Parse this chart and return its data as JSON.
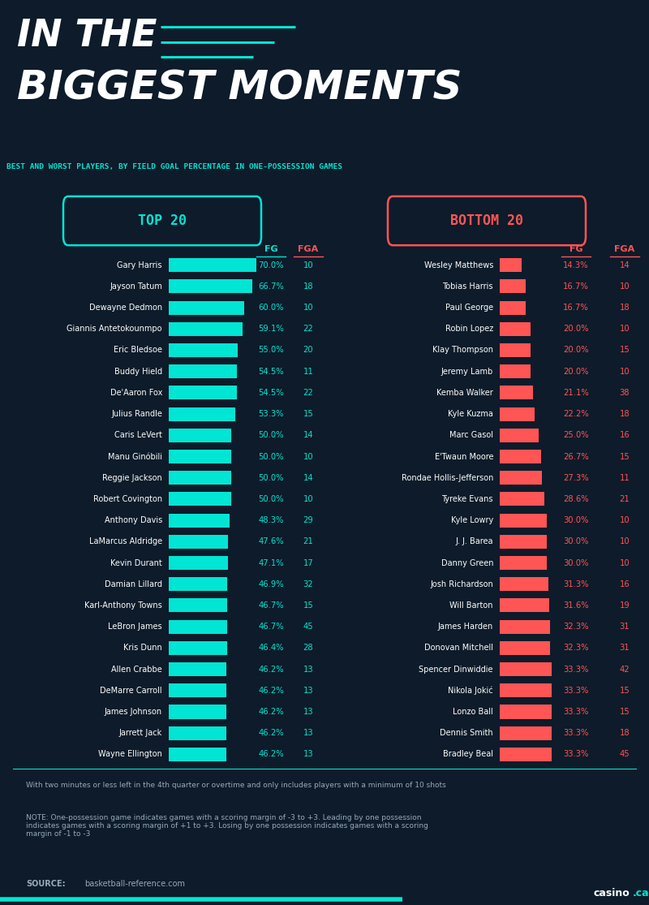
{
  "bg_color": "#0d1b2a",
  "header_bg": "#0d1b2a",
  "cyan": "#00e5d4",
  "red": "#ff5555",
  "white": "#ffffff",
  "gray_text": "#99aabb",
  "dark_gray": "#1a2535",
  "title_line1": "IN THE",
  "title_line2": "BIGGEST MOMENTS",
  "subtitle": "BEST AND WORST PLAYERS, BY FIELD GOAL PERCENTAGE IN ONE-POSSESSION GAMES",
  "footnote1": "With two minutes or less left in the 4th quarter or overtime and only includes players with a minimum of 10 shots",
  "footnote2": "NOTE: One-possession game indicates games with a scoring margin of -3 to +3. Leading by one possession\nindicates games with a scoring margin of +1 to +3. Losing by one possession indicates games with a scoring\nmargin of -1 to -3",
  "source_label": "SOURCE:",
  "source_url": "basketball-reference.com",
  "top20_players": [
    "Gary Harris",
    "Jayson Tatum",
    "Dewayne Dedmon",
    "Giannis Antetokounmpo",
    "Eric Bledsoe",
    "Buddy Hield",
    "De'Aaron Fox",
    "Julius Randle",
    "Caris LeVert",
    "Manu Ginóbili",
    "Reggie Jackson",
    "Robert Covington",
    "Anthony Davis",
    "LaMarcus Aldridge",
    "Kevin Durant",
    "Damian Lillard",
    "Karl-Anthony Towns",
    "LeBron James",
    "Kris Dunn",
    "Allen Crabbe",
    "DeMarre Carroll",
    "James Johnson",
    "Jarrett Jack",
    "Wayne Ellington"
  ],
  "top20_fg_pct": [
    70.0,
    66.7,
    60.0,
    59.1,
    55.0,
    54.5,
    54.5,
    53.3,
    50.0,
    50.0,
    50.0,
    50.0,
    48.3,
    47.6,
    47.1,
    46.9,
    46.7,
    46.7,
    46.4,
    46.2,
    46.2,
    46.2,
    46.2,
    46.2
  ],
  "top20_fga": [
    10,
    18,
    10,
    22,
    20,
    11,
    22,
    15,
    14,
    10,
    14,
    10,
    29,
    21,
    17,
    32,
    15,
    45,
    28,
    13,
    13,
    13,
    13,
    13
  ],
  "bottom20_players": [
    "Wesley Matthews",
    "Tobias Harris",
    "Paul George",
    "Robin Lopez",
    "Klay Thompson",
    "Jeremy Lamb",
    "Kemba Walker",
    "Kyle Kuzma",
    "Marc Gasol",
    "E'Twaun Moore",
    "Rondae Hollis-Jefferson",
    "Tyreke Evans",
    "Kyle Lowry",
    "J. J. Barea",
    "Danny Green",
    "Josh Richardson",
    "Will Barton",
    "James Harden",
    "Donovan Mitchell",
    "Spencer Dinwiddie",
    "Nikola Jokić",
    "Lonzo Ball",
    "Dennis Smith",
    "Bradley Beal"
  ],
  "bottom20_fg_pct": [
    14.3,
    16.7,
    16.7,
    20.0,
    20.0,
    20.0,
    21.1,
    22.2,
    25.0,
    26.7,
    27.3,
    28.6,
    30.0,
    30.0,
    30.0,
    31.3,
    31.6,
    32.3,
    32.3,
    33.3,
    33.3,
    33.3,
    33.3,
    33.3
  ],
  "bottom20_fga": [
    14,
    10,
    18,
    10,
    15,
    10,
    38,
    18,
    16,
    15,
    11,
    21,
    10,
    10,
    10,
    16,
    19,
    31,
    31,
    42,
    15,
    15,
    18,
    45
  ]
}
